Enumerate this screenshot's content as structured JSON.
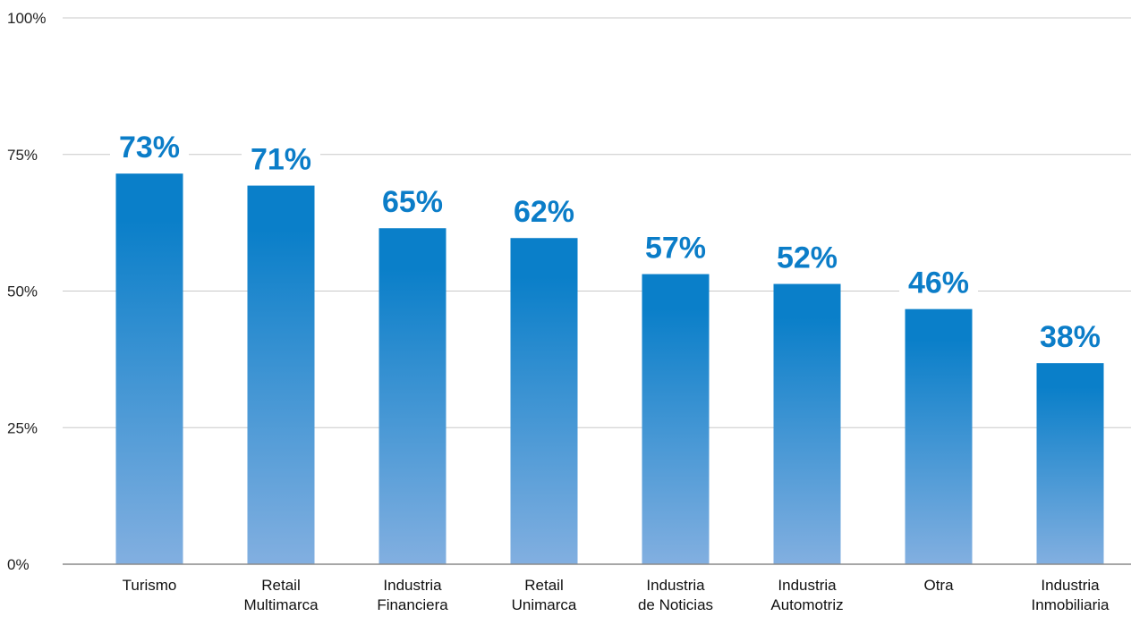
{
  "chart_data": {
    "type": "bar",
    "title": "",
    "xlabel": "",
    "ylabel": "",
    "ylim": [
      0,
      100
    ],
    "y_ticks": [
      "0%",
      "25%",
      "50%",
      "75%",
      "100%"
    ],
    "y_tick_values": [
      0,
      25,
      50,
      75,
      100
    ],
    "grid": true,
    "legend": "none",
    "categories": [
      [
        "Turismo"
      ],
      [
        "Retail",
        "Multimarca"
      ],
      [
        "Industria",
        "Financiera"
      ],
      [
        "Retail",
        "Unimarca"
      ],
      [
        "Industria",
        "de Noticias"
      ],
      [
        "Industria",
        "Automotriz"
      ],
      [
        "Otra"
      ],
      [
        "Industria",
        "Inmobiliaria"
      ]
    ],
    "values": [
      73,
      71,
      65,
      62,
      57,
      52,
      46,
      38
    ],
    "bar_heights_percent": [
      71.5,
      69.3,
      61.5,
      59.7,
      53.1,
      51.3,
      46.7,
      36.8
    ],
    "value_labels": [
      "73%",
      "71%",
      "65%",
      "62%",
      "57%",
      "52%",
      "46%",
      "38%"
    ],
    "colors": {
      "bar_top": "#0a7fc9",
      "bar_bottom": "#82afe0",
      "value_label": "#0b7dc8",
      "grid": "#c8c8c8",
      "axis": "#8a8a8a",
      "text": "#111111"
    }
  }
}
